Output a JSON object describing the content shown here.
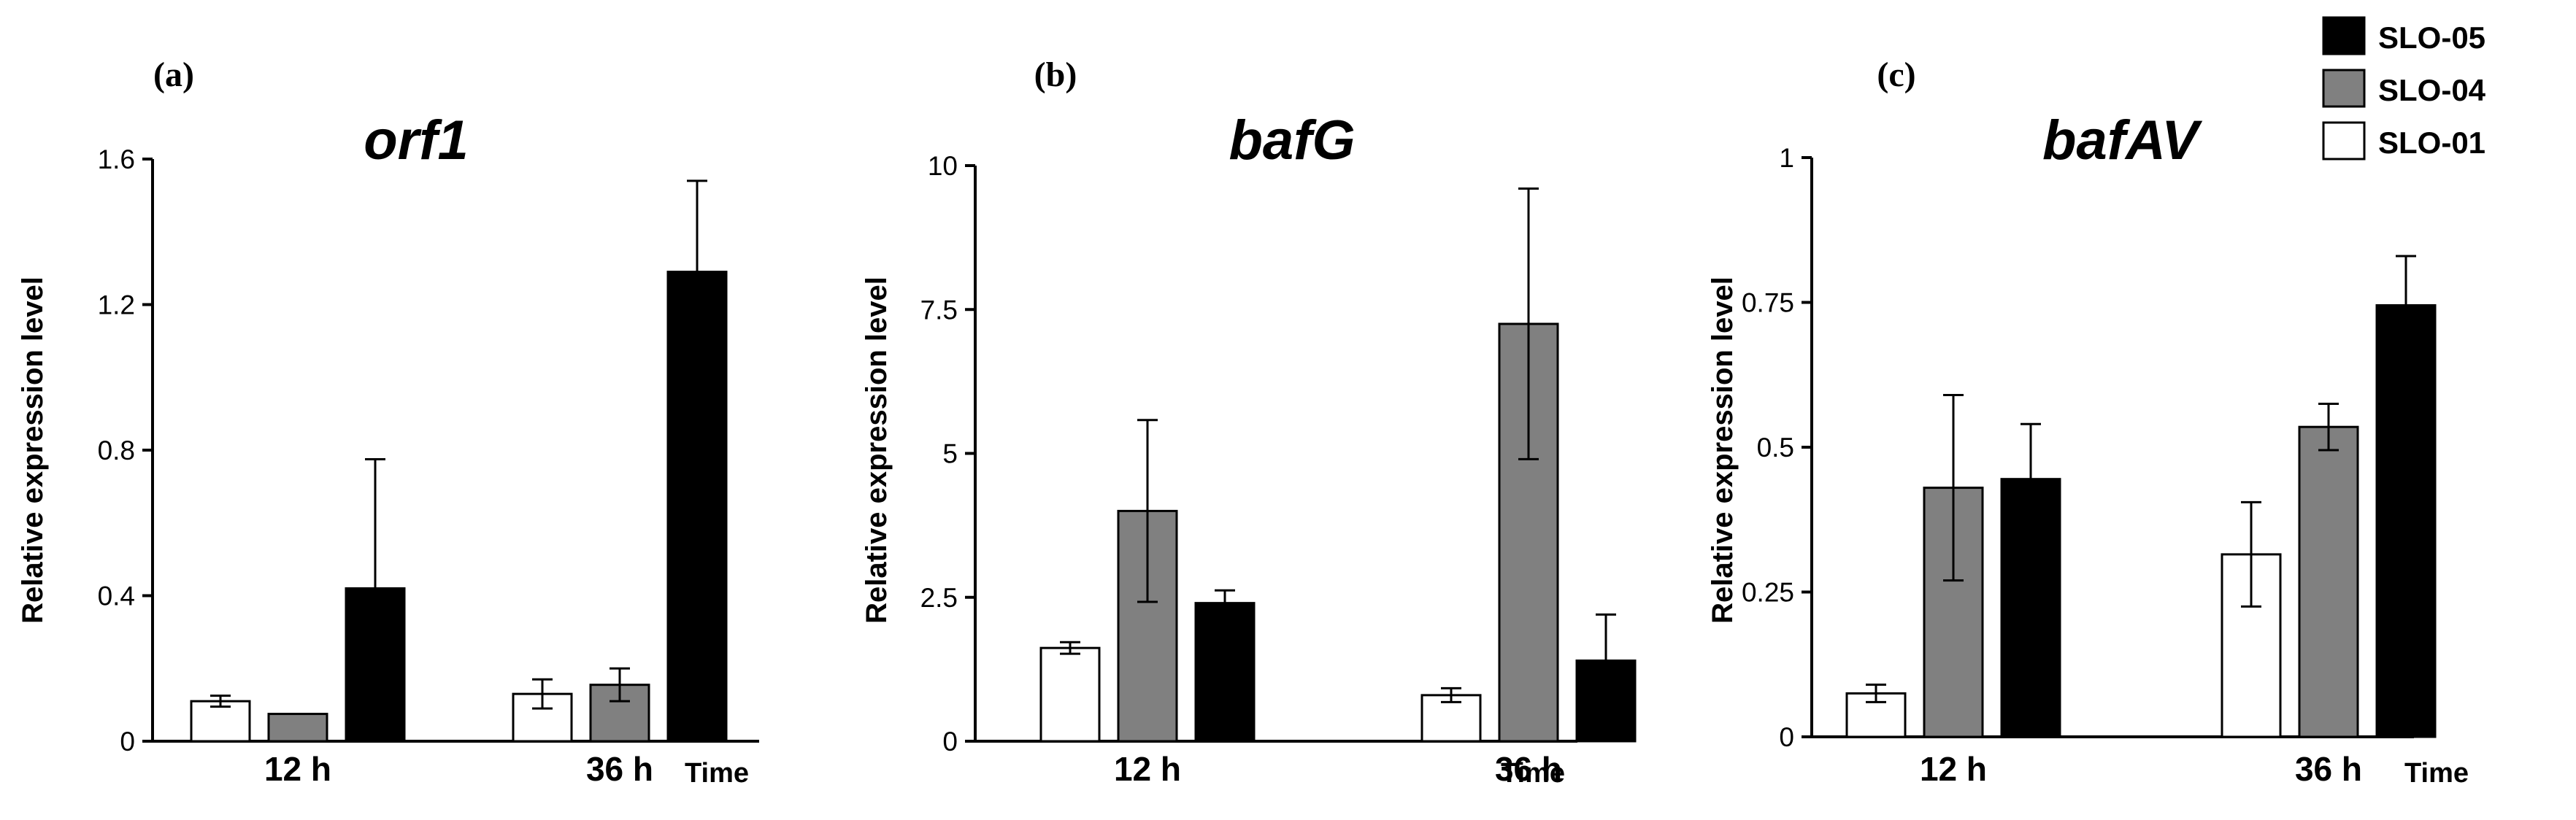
{
  "legend": [
    {
      "label": "SLO-05",
      "color": "#000000"
    },
    {
      "label": "SLO-04",
      "color": "#808080"
    },
    {
      "label": "SLO-01",
      "color": "#ffffff"
    }
  ],
  "chart_data": [
    {
      "type": "bar",
      "panel": "(a)",
      "title": "orf1",
      "ylabel": "Relative expression level",
      "xlabel": "Time",
      "categories": [
        "12 h",
        "36 h"
      ],
      "ylim": [
        0,
        1.6
      ],
      "yticks": [
        0,
        0.4,
        0.8,
        1.2,
        1.6
      ],
      "ytick_labels": [
        "0",
        "0.4",
        "0.8",
        "1.2",
        "1.6"
      ],
      "series": [
        {
          "name": "SLO-01",
          "values": [
            0.11,
            0.13
          ],
          "errors": [
            0.015,
            0.04
          ]
        },
        {
          "name": "SLO-04",
          "values": [
            0.075,
            0.155
          ],
          "errors": [
            0.0,
            0.045
          ]
        },
        {
          "name": "SLO-05",
          "values": [
            0.42,
            1.29
          ],
          "errors": [
            0.355,
            0.25
          ]
        }
      ]
    },
    {
      "type": "bar",
      "panel": "(b)",
      "title": "bafG",
      "ylabel": "Relative expression level",
      "xlabel": "Time",
      "categories": [
        "12 h",
        "36 h"
      ],
      "ylim": [
        0,
        10
      ],
      "yticks": [
        0,
        2.5,
        5,
        7.5,
        10
      ],
      "ytick_labels": [
        "0",
        "2.5",
        "5",
        "7.5",
        "10"
      ],
      "series": [
        {
          "name": "SLO-01",
          "values": [
            1.62,
            0.8
          ],
          "errors": [
            0.1,
            0.12
          ]
        },
        {
          "name": "SLO-04",
          "values": [
            4.0,
            7.25
          ],
          "errors": [
            1.58,
            2.35
          ]
        },
        {
          "name": "SLO-05",
          "values": [
            2.4,
            1.4
          ],
          "errors": [
            0.22,
            0.8
          ]
        }
      ]
    },
    {
      "type": "bar",
      "panel": "(c)",
      "title": "bafAV",
      "ylabel": "Relative expression level",
      "xlabel": "Time",
      "categories": [
        "12 h",
        "36 h"
      ],
      "ylim": [
        0,
        1
      ],
      "yticks": [
        0,
        0.25,
        0.5,
        0.75,
        1
      ],
      "ytick_labels": [
        "0",
        "0.25",
        "0.5",
        "0.75",
        "1"
      ],
      "series": [
        {
          "name": "SLO-01",
          "values": [
            0.075,
            0.315
          ],
          "errors": [
            0.015,
            0.09
          ]
        },
        {
          "name": "SLO-04",
          "values": [
            0.43,
            0.535
          ],
          "errors": [
            0.16,
            0.04
          ]
        },
        {
          "name": "SLO-05",
          "values": [
            0.445,
            0.745
          ],
          "errors": [
            0.095,
            0.085
          ]
        }
      ]
    }
  ]
}
